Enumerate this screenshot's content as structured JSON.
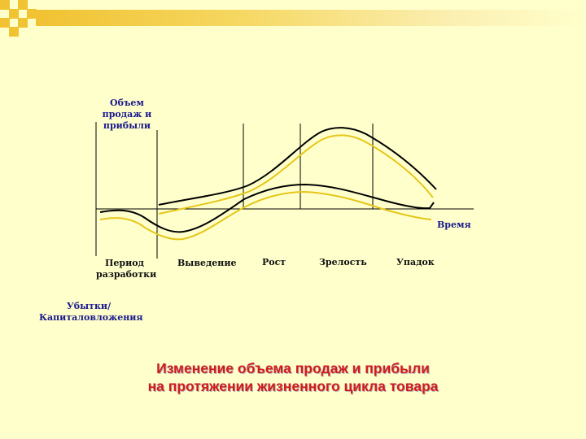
{
  "diagram": {
    "y_axis_label": [
      "Объем",
      "продаж и",
      "прибыли"
    ],
    "x_axis_label": "Время",
    "stages": [
      [
        "Период",
        "разработки"
      ],
      [
        "Выведение"
      ],
      [
        "Рост"
      ],
      [
        "Зрелость"
      ],
      [
        "Упадок"
      ]
    ],
    "loss_label": [
      "Убытки/",
      "Капиталовложения"
    ]
  },
  "caption": {
    "line1": "Изменение объема продаж и прибыли",
    "line2": "на протяжении жизненного цикла товара"
  },
  "colors": {
    "background": "#ffffcc",
    "accent": "#f1c232",
    "label_blue": "#1a1a8c",
    "caption_red": "#d11b1b",
    "curve_yellow": "#e6c619",
    "curve_black": "#000000"
  }
}
